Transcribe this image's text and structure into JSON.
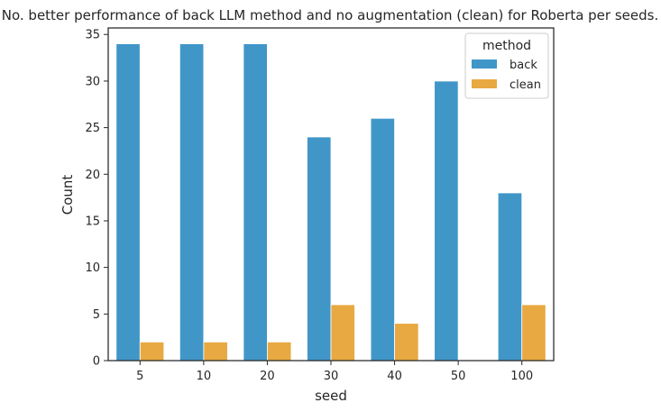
{
  "chart_data": {
    "type": "bar",
    "title": "No. better performance of back LLM method and no augmentation (clean) for Roberta per seeds.",
    "xlabel": "seed",
    "ylabel": "Count",
    "categories": [
      "5",
      "10",
      "20",
      "30",
      "40",
      "50",
      "100"
    ],
    "series": [
      {
        "name": "back",
        "values": [
          34,
          34,
          34,
          24,
          26,
          30,
          18
        ],
        "color": "#4196c8"
      },
      {
        "name": "clean",
        "values": [
          2,
          2,
          2,
          6,
          4,
          0,
          6
        ],
        "color": "#e8a942"
      }
    ],
    "ylim": [
      0,
      35.7
    ],
    "yticks": [
      0,
      5,
      10,
      15,
      20,
      25,
      30,
      35
    ],
    "grid": false,
    "legend": {
      "title": "method",
      "position": "top-right"
    }
  }
}
